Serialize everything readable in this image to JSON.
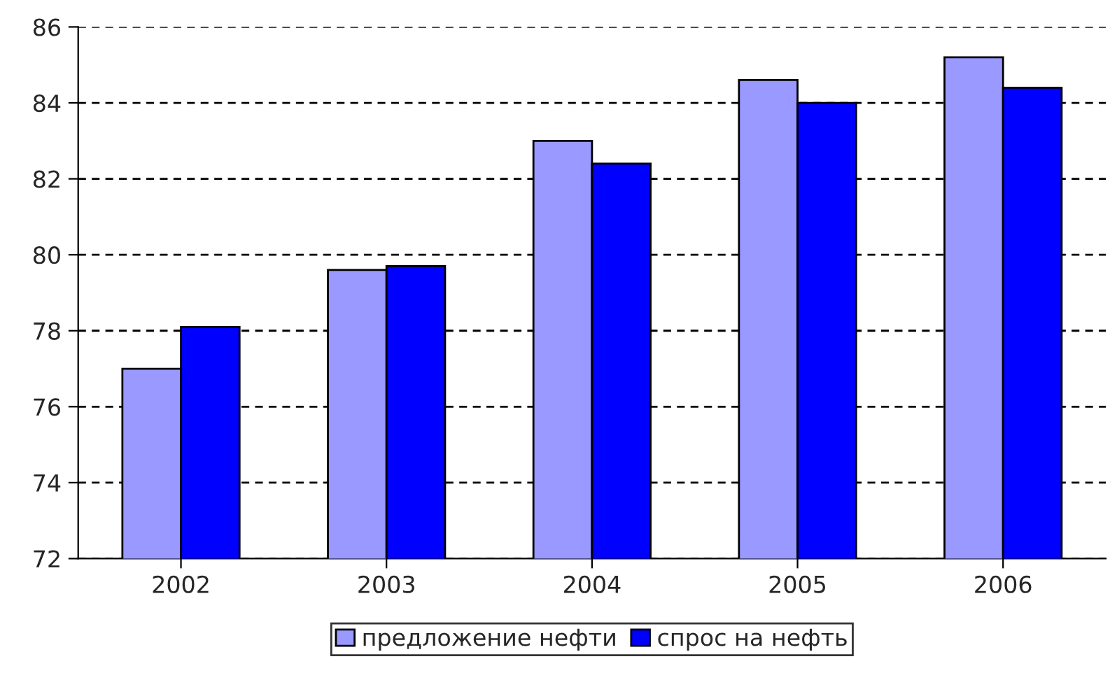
{
  "chart_data": {
    "type": "bar",
    "categories": [
      "2002",
      "2003",
      "2004",
      "2005",
      "2006"
    ],
    "series": [
      {
        "name": "предложение нефти",
        "color": "#9999ff",
        "values": [
          77.0,
          79.6,
          83.0,
          84.6,
          85.2
        ]
      },
      {
        "name": "спрос на нефть",
        "color": "#0000ff",
        "values": [
          78.1,
          79.7,
          82.4,
          84.0,
          84.4
        ]
      }
    ],
    "ylim": [
      72,
      86
    ],
    "yticks": [
      72,
      74,
      76,
      78,
      80,
      82,
      84,
      86
    ],
    "grid": "y",
    "legend": "bottom"
  }
}
